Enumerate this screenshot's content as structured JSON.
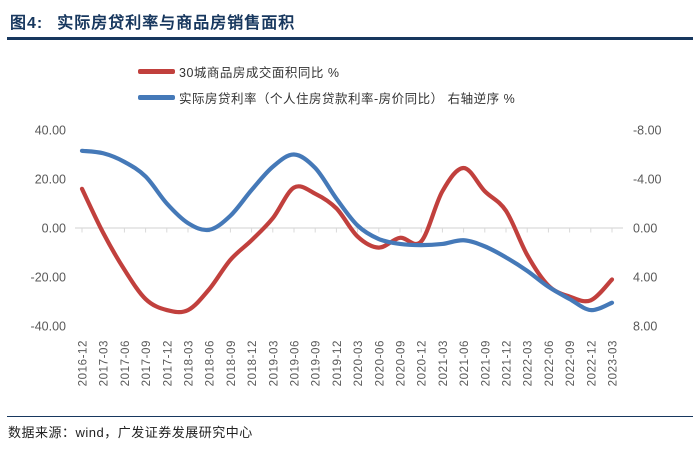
{
  "figure": {
    "label": "图4:",
    "title": "实际房贷利率与商品房销售面积",
    "source": "数据来源：wind，广发证券发展研究中心"
  },
  "colors": {
    "navy": "#17375E",
    "red": "#C1403D",
    "blue": "#4579B8",
    "axis_text": "#595959",
    "grid": "#D9D9D9",
    "legend_text": "#333333",
    "footer_text": "#222222"
  },
  "chart_data": {
    "type": "line",
    "smooth": true,
    "legend_position": "top",
    "grid": "zero-line-only",
    "categories": [
      "2016-12",
      "2017-03",
      "2017-06",
      "2017-09",
      "2017-12",
      "2018-03",
      "2018-06",
      "2018-09",
      "2018-12",
      "2019-03",
      "2019-06",
      "2019-09",
      "2019-12",
      "2020-03",
      "2020-06",
      "2020-09",
      "2020-12",
      "2021-03",
      "2021-06",
      "2021-09",
      "2021-12",
      "2022-03",
      "2022-06",
      "2022-09",
      "2022-12",
      "2023-03"
    ],
    "left_axis": {
      "range": [
        -40,
        40
      ],
      "ticks": [
        "40.00",
        "20.00",
        "0.00",
        "-20.00",
        "-40.00"
      ]
    },
    "right_axis": {
      "range": [
        -8,
        8
      ],
      "reversed": true,
      "ticks": [
        "-8.00",
        "-4.00",
        "0.00",
        "4.00",
        "8.00"
      ]
    },
    "series": [
      {
        "key": "sales-area-yoy",
        "name": "30城商品房成交面积同比 %",
        "axis": "left",
        "color": "#C1403D",
        "values": [
          16,
          -2,
          -17,
          -29,
          -33.5,
          -33.5,
          -25,
          -13,
          -5,
          4,
          16.5,
          14,
          8,
          -3.5,
          -8,
          -4,
          -5.5,
          15,
          24.5,
          15,
          7,
          -11,
          -23.5,
          -28,
          -29.5,
          -21
        ]
      },
      {
        "key": "real-mortgage-rate",
        "name": "实际房贷利率（个人住房贷款利率-房价同比） 右轴逆序 %",
        "axis": "right",
        "color": "#4579B8",
        "values": [
          -6.3,
          -6.1,
          -5.4,
          -4.2,
          -2.0,
          -0.4,
          0.15,
          -1.0,
          -3.1,
          -5.0,
          -6.0,
          -4.9,
          -2.4,
          -0.2,
          0.9,
          1.3,
          1.4,
          1.3,
          1.0,
          1.5,
          2.4,
          3.5,
          4.8,
          5.8,
          6.7,
          6.1
        ]
      }
    ]
  }
}
